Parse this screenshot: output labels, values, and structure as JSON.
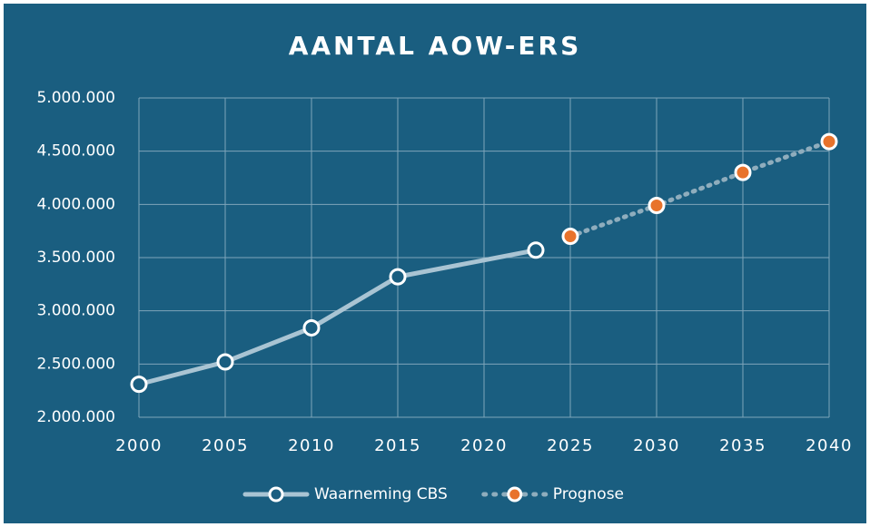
{
  "chart_data": {
    "type": "line",
    "title": "AANTAL AOW-ERS",
    "series": [
      {
        "name": "Waarneming CBS",
        "color": "#a9c4d3",
        "marker_color": "#1a5e80",
        "dash": false,
        "x": [
          2000,
          2005,
          2010,
          2015,
          2023
        ],
        "values": [
          2310000,
          2520000,
          2840000,
          3320000,
          3570000
        ]
      },
      {
        "name": "Prognose",
        "color": "#8fadbd",
        "marker_color": "#e8732c",
        "dash": true,
        "x": [
          2025,
          2030,
          2035,
          2040
        ],
        "values": [
          3700000,
          3990000,
          4300000,
          4590000
        ]
      }
    ],
    "xlim": [
      2000,
      2040
    ],
    "xticks": [
      2000,
      2005,
      2010,
      2015,
      2020,
      2025,
      2030,
      2035,
      2040
    ],
    "ylim": [
      2000000,
      5000000
    ],
    "yticks": [
      {
        "value": 2000000,
        "label": "2.000.000"
      },
      {
        "value": 2500000,
        "label": "2.500.000"
      },
      {
        "value": 3000000,
        "label": "3.000.000"
      },
      {
        "value": 3500000,
        "label": "3.500.000"
      },
      {
        "value": 4000000,
        "label": "4.000.000"
      },
      {
        "value": 4500000,
        "label": "4.500.000"
      },
      {
        "value": 5000000,
        "label": "5.000.000"
      }
    ],
    "grid": true,
    "legend": "bottom"
  }
}
